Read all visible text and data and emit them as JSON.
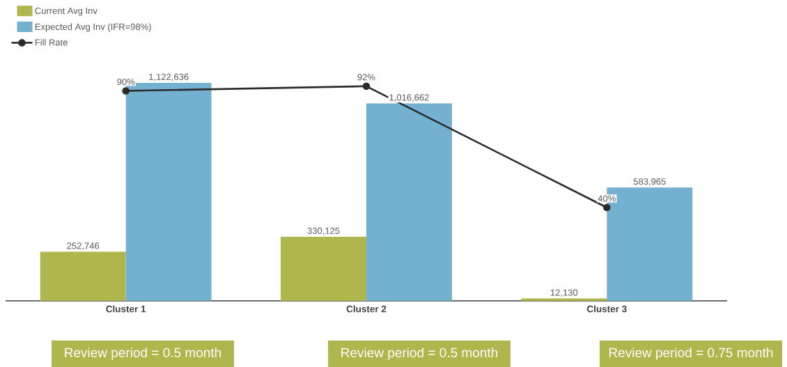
{
  "chart_data": {
    "type": "bar",
    "categories": [
      "Cluster 1",
      "Cluster 2",
      "Cluster 3"
    ],
    "series": [
      {
        "name": "Current Avg Inv",
        "color": "#afb64c",
        "values": [
          252746,
          330125,
          12130
        ],
        "value_labels": [
          "252,746",
          "330,125",
          "12,130"
        ]
      },
      {
        "name": "Expected Avg Inv (IFR=98%)",
        "color": "#74b1d0",
        "values": [
          1122636,
          1016662,
          583965
        ],
        "value_labels": [
          "1,122,636",
          "1,016,662",
          "583,965"
        ]
      },
      {
        "name": "Fill Rate",
        "type": "line",
        "axis": "y2",
        "color": "#2b2b2b",
        "marker": "circle",
        "values": [
          90,
          92,
          40
        ],
        "value_labels": [
          "90%",
          "92%",
          "40%"
        ]
      }
    ],
    "tick_labels": "x",
    "legend": "top left",
    "annotations": [
      "Review period = 0.5 month",
      "Review period = 0.5 month",
      "Review period = 0.75 month"
    ]
  }
}
